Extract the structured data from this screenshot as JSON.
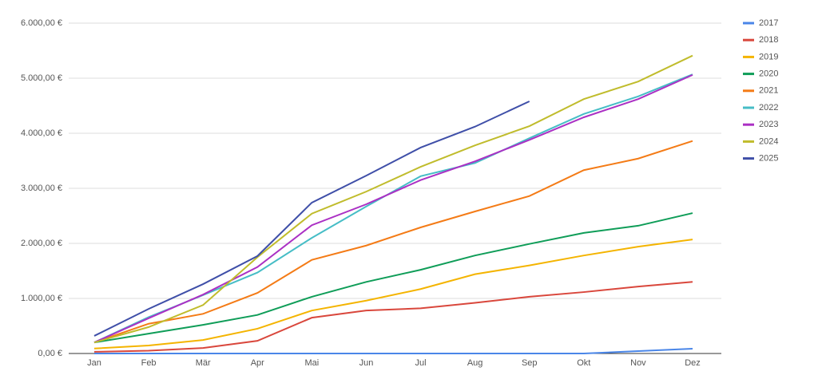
{
  "chart_data": {
    "type": "line",
    "categories": [
      "Jan",
      "Feb",
      "Mär",
      "Apr",
      "Mai",
      "Jun",
      "Jul",
      "Aug",
      "Sep",
      "Okt",
      "Nov",
      "Dez"
    ],
    "series": [
      {
        "name": "2017",
        "color": "#4a86e8",
        "values": [
          0,
          0,
          0,
          0,
          0,
          0,
          0,
          0,
          0,
          0,
          43,
          87
        ]
      },
      {
        "name": "2018",
        "color": "#d9473c",
        "values": [
          30,
          50,
          100,
          230,
          650,
          780,
          820,
          920,
          1030,
          1115,
          1215,
          1300
        ]
      },
      {
        "name": "2019",
        "color": "#f4b400",
        "values": [
          90,
          145,
          245,
          450,
          780,
          960,
          1170,
          1440,
          1600,
          1780,
          1940,
          2070
        ]
      },
      {
        "name": "2020",
        "color": "#0f9d58",
        "values": [
          200,
          360,
          520,
          700,
          1030,
          1300,
          1520,
          1780,
          1990,
          2190,
          2320,
          2550
        ]
      },
      {
        "name": "2021",
        "color": "#f47b16",
        "values": [
          200,
          540,
          720,
          1100,
          1700,
          1960,
          2290,
          2580,
          2860,
          3330,
          3540,
          3860
        ]
      },
      {
        "name": "2022",
        "color": "#46bdc6",
        "values": [
          200,
          660,
          1060,
          1470,
          2100,
          2670,
          3220,
          3460,
          3910,
          4350,
          4670,
          5070
        ]
      },
      {
        "name": "2023",
        "color": "#ab30c4",
        "values": [
          200,
          640,
          1070,
          1570,
          2330,
          2710,
          3150,
          3490,
          3880,
          4290,
          4620,
          5060
        ]
      },
      {
        "name": "2024",
        "color": "#c0bc2c",
        "values": [
          200,
          480,
          880,
          1750,
          2540,
          2940,
          3390,
          3780,
          4130,
          4620,
          4940,
          5410
        ]
      },
      {
        "name": "2025",
        "color": "#3f4fa8",
        "values": [
          320,
          810,
          1260,
          1770,
          2740,
          3230,
          3740,
          4120,
          4580,
          null,
          null,
          null
        ]
      }
    ],
    "ylim": [
      0,
      6000
    ],
    "yticks": [
      {
        "value": 0,
        "label": "0,00 €"
      },
      {
        "value": 1000,
        "label": "1.000,00 €"
      },
      {
        "value": 2000,
        "label": "2.000,00 €"
      },
      {
        "value": 3000,
        "label": "3.000,00 €"
      },
      {
        "value": 4000,
        "label": "4.000,00 €"
      },
      {
        "value": 5000,
        "label": "5.000,00 €"
      },
      {
        "value": 6000,
        "label": "6.000,00 €"
      }
    ],
    "grid": true,
    "legend": "right"
  }
}
